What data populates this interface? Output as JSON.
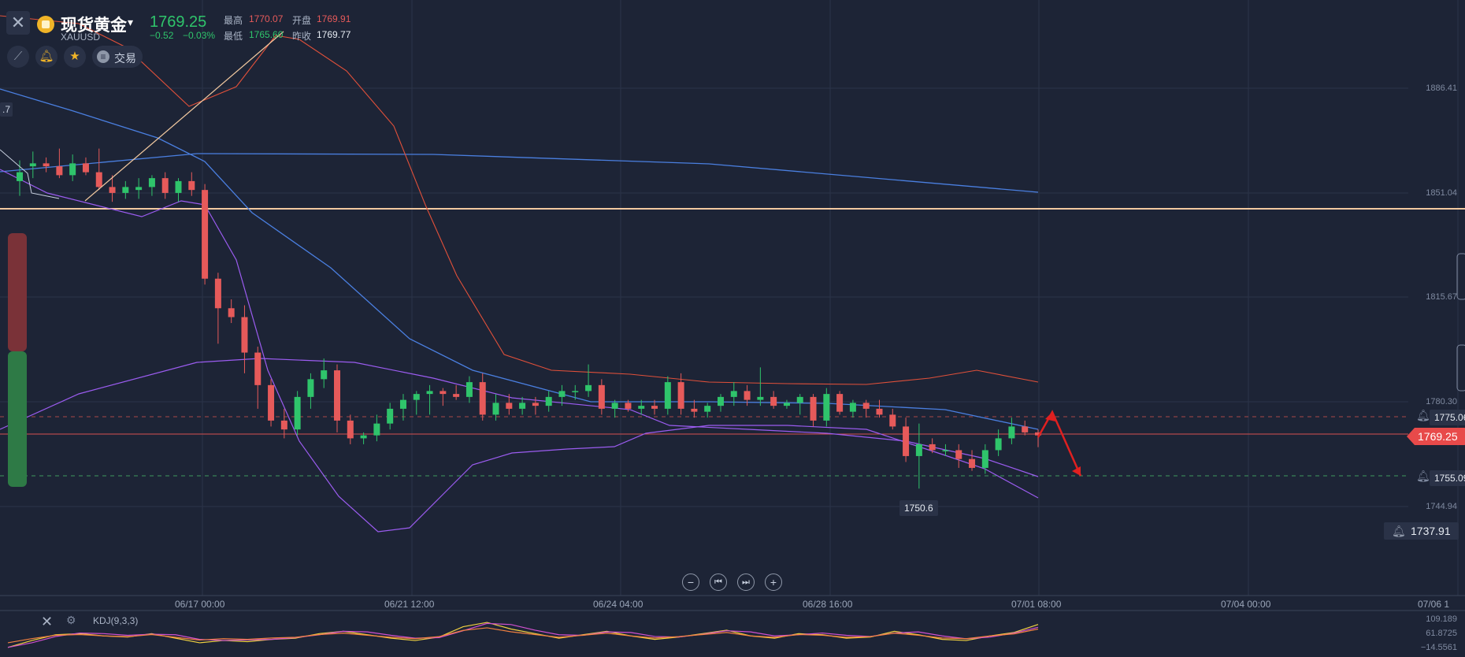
{
  "header": {
    "close_icon": "close-icon",
    "name": "现货黄金",
    "symbol": "XAUUSD",
    "price": "1769.25",
    "change": "−0.52",
    "change_pct": "−0.03%",
    "high_label": "最高",
    "high": "1770.07",
    "open_label": "开盘",
    "open": "1769.91",
    "low_label": "最低",
    "low": "1765.60",
    "prev_label": "昨收",
    "prev": "1769.77"
  },
  "toolbar": {
    "draw_icon": "draw-tool-icon",
    "alert_icon": "bell-icon",
    "fav_icon": "star-icon",
    "trade_label": "交易"
  },
  "y_axis": [
    "1886.41",
    "1851.04",
    "1815.67",
    "1780.30",
    "1744.94"
  ],
  "price_tags": {
    "alert_high": "1775.06",
    "current": "1769.25",
    "alert_low": "1755.09",
    "alert_far": "1737.91",
    "low_marker": "1750.6",
    "left_cut": ".7"
  },
  "x_axis": [
    "06/17 00:00",
    "06/21 12:00",
    "06/24 04:00",
    "06/28 16:00",
    "07/01 08:00",
    "07/04 00:00",
    "07/06 1"
  ],
  "controls": {
    "zoom_out": "−",
    "first": "⏮",
    "last": "⏭",
    "zoom_in": "+"
  },
  "kdj": {
    "label": "KDJ(9,3,3)",
    "values": [
      "109.189",
      "61.8725",
      "−14.5561"
    ]
  },
  "colors": {
    "up": "#2fc46b",
    "down": "#e65a5a",
    "background": "#1d2436",
    "hline": "#f2c9a0",
    "ma_blue": "#4a7fe0",
    "boll_purple": "#9b5cf0",
    "boll_red": "#e0503a"
  },
  "chart_data": {
    "type": "candlestick",
    "candles": [
      [
        1855,
        1862,
        1850,
        1858
      ],
      [
        1860,
        1865,
        1856,
        1861
      ],
      [
        1861,
        1863,
        1858,
        1860
      ],
      [
        1860,
        1866,
        1856,
        1857
      ],
      [
        1857,
        1864,
        1855,
        1861
      ],
      [
        1861,
        1863,
        1857,
        1858
      ],
      [
        1858,
        1866,
        1852,
        1853
      ],
      [
        1853,
        1857,
        1848,
        1851
      ],
      [
        1851,
        1855,
        1849,
        1853
      ],
      [
        1852,
        1856,
        1849,
        1853
      ],
      [
        1853,
        1857,
        1850,
        1856
      ],
      [
        1856,
        1858,
        1849,
        1851
      ],
      [
        1851,
        1856,
        1848,
        1855
      ],
      [
        1855,
        1858,
        1850,
        1852
      ],
      [
        1852,
        1854,
        1820,
        1822
      ],
      [
        1822,
        1824,
        1800,
        1812
      ],
      [
        1812,
        1815,
        1807,
        1809
      ],
      [
        1809,
        1813,
        1790,
        1797
      ],
      [
        1797,
        1799,
        1778,
        1786
      ],
      [
        1786,
        1788,
        1772,
        1774
      ],
      [
        1774,
        1778,
        1768,
        1771
      ],
      [
        1771,
        1784,
        1769,
        1782
      ],
      [
        1782,
        1790,
        1778,
        1788
      ],
      [
        1788,
        1795,
        1785,
        1791
      ],
      [
        1791,
        1793,
        1770,
        1774
      ],
      [
        1774,
        1776,
        1766,
        1768
      ],
      [
        1768,
        1770,
        1766,
        1769
      ],
      [
        1769,
        1776,
        1767,
        1773
      ],
      [
        1773,
        1780,
        1771,
        1778
      ],
      [
        1778,
        1783,
        1774,
        1781
      ],
      [
        1781,
        1784,
        1776,
        1783
      ],
      [
        1783,
        1786,
        1776,
        1784
      ],
      [
        1784,
        1785,
        1779,
        1783
      ],
      [
        1783,
        1786,
        1781,
        1782
      ],
      [
        1782,
        1789,
        1780,
        1787
      ],
      [
        1787,
        1790,
        1774,
        1776
      ],
      [
        1776,
        1783,
        1774,
        1780
      ],
      [
        1780,
        1783,
        1776,
        1778
      ],
      [
        1778,
        1782,
        1776,
        1780
      ],
      [
        1780,
        1782,
        1776,
        1779
      ],
      [
        1779,
        1784,
        1777,
        1782
      ],
      [
        1782,
        1786,
        1779,
        1784
      ],
      [
        1784,
        1786,
        1781,
        1784
      ],
      [
        1784,
        1793,
        1782,
        1786
      ],
      [
        1786,
        1788,
        1776,
        1778
      ],
      [
        1778,
        1781,
        1775,
        1780
      ],
      [
        1780,
        1781,
        1777,
        1778
      ],
      [
        1778,
        1781,
        1776,
        1779
      ],
      [
        1779,
        1781,
        1776,
        1778
      ],
      [
        1778,
        1789,
        1776,
        1787
      ],
      [
        1787,
        1790,
        1776,
        1778
      ],
      [
        1778,
        1781,
        1775,
        1777
      ],
      [
        1777,
        1780,
        1775,
        1779
      ],
      [
        1779,
        1783,
        1777,
        1782
      ],
      [
        1782,
        1787,
        1779,
        1784
      ],
      [
        1784,
        1786,
        1779,
        1781
      ],
      [
        1781,
        1792,
        1779,
        1782
      ],
      [
        1782,
        1784,
        1778,
        1779
      ],
      [
        1779,
        1781,
        1778,
        1780
      ],
      [
        1780,
        1783,
        1776,
        1782
      ],
      [
        1782,
        1783,
        1772,
        1774
      ],
      [
        1774,
        1785,
        1772,
        1783
      ],
      [
        1783,
        1784,
        1776,
        1777
      ],
      [
        1777,
        1781,
        1775,
        1780
      ],
      [
        1780,
        1781,
        1775,
        1778
      ],
      [
        1778,
        1781,
        1775,
        1776
      ],
      [
        1776,
        1778,
        1771,
        1772
      ],
      [
        1772,
        1775,
        1760,
        1762
      ],
      [
        1762,
        1773,
        1751,
        1766
      ],
      [
        1766,
        1768,
        1763,
        1764
      ],
      [
        1764,
        1766,
        1762,
        1764
      ],
      [
        1764,
        1766,
        1758,
        1761
      ],
      [
        1761,
        1764,
        1757,
        1758
      ],
      [
        1758,
        1766,
        1756,
        1764
      ],
      [
        1764,
        1771,
        1762,
        1768
      ],
      [
        1768,
        1775,
        1766,
        1772
      ],
      [
        1772,
        1774,
        1769,
        1770
      ],
      [
        1770,
        1771,
        1765,
        1769
      ]
    ]
  }
}
